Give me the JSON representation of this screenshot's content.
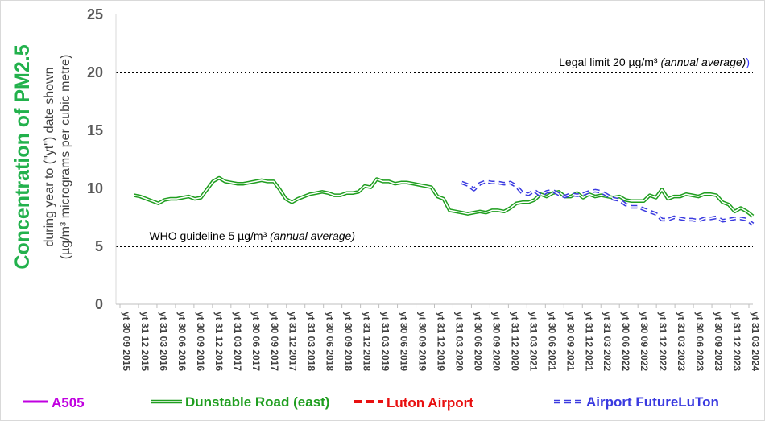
{
  "chart_data": {
    "type": "line",
    "title": "Concentration of PM2.5",
    "ylabel_line1": "during year to (\"yt\") date shown",
    "ylabel_line2": "(µg/m³ micrograms per cubic metre)",
    "ylim": [
      0,
      25
    ],
    "yticks": [
      "0",
      "5",
      "10",
      "15",
      "20",
      "25"
    ],
    "grid": false,
    "legend_position": "bottom",
    "categories": [
      "yt 30 09 2015",
      "yt 31 12 2015",
      "yt 31 03 2016",
      "yt 30 06 2016",
      "yt 30 09 2016",
      "yt 31 12 2016",
      "yt 31 03 2017",
      "yt 30 06 2017",
      "yt 30 09 2017",
      "yt 31 12 2017",
      "yt 31 03 2018",
      "yt 30 06 2018",
      "yt 30 09 2018",
      "yt 31 12 2018",
      "yt 31 03 2019",
      "yt 30 06 2019",
      "yt 30 09 2019",
      "yt 31 12 2019",
      "yt 31 03 2020",
      "yt 30 06 2020",
      "yt 30 09 2020",
      "yt 31 12 2020",
      "yt 31 03 2021",
      "yt 30 06 2021",
      "yt 30 09 2021",
      "yt 31 12 2021",
      "yt 31 03 2022",
      "yt 30 06 2022",
      "yt 30 09 2022",
      "yt 31 12 2022",
      "yt 31 03 2023",
      "yt 30 06 2023",
      "yt 30 09 2023",
      "yt 31 12 2023",
      "yt 31 03 2024"
    ],
    "x_end": "2024-06",
    "reference_lines": [
      {
        "value": 20,
        "label_main": "Legal limit 20 µg/m³",
        "label_note": "(annual average)",
        "label_close": ")",
        "color": "#000000",
        "close_color": "#3333ff"
      },
      {
        "value": 5,
        "label_main": "WHO guideline 5 µg/m³",
        "label_note": "(annual average)",
        "label_close": "",
        "color": "#000000",
        "close_color": "#000000"
      }
    ],
    "series": [
      {
        "name": "A505",
        "color": "#c000e0",
        "style": "solid",
        "points": []
      },
      {
        "name": "Dunstable Road (east)",
        "color": "#1f9e1f",
        "style": "double",
        "points": [
          [
            "2015-12",
            9.4
          ],
          [
            "2016-01",
            9.3
          ],
          [
            "2016-02",
            9.1
          ],
          [
            "2016-03",
            8.9
          ],
          [
            "2016-04",
            8.7
          ],
          [
            "2016-05",
            9.0
          ],
          [
            "2016-06",
            9.1
          ],
          [
            "2016-07",
            9.1
          ],
          [
            "2016-08",
            9.2
          ],
          [
            "2016-09",
            9.3
          ],
          [
            "2016-10",
            9.1
          ],
          [
            "2016-11",
            9.2
          ],
          [
            "2016-12",
            9.9
          ],
          [
            "2017-01",
            10.6
          ],
          [
            "2017-02",
            10.9
          ],
          [
            "2017-03",
            10.6
          ],
          [
            "2017-04",
            10.5
          ],
          [
            "2017-05",
            10.4
          ],
          [
            "2017-06",
            10.4
          ],
          [
            "2017-07",
            10.5
          ],
          [
            "2017-08",
            10.6
          ],
          [
            "2017-09",
            10.7
          ],
          [
            "2017-10",
            10.6
          ],
          [
            "2017-11",
            10.6
          ],
          [
            "2017-12",
            9.9
          ],
          [
            "2018-01",
            9.1
          ],
          [
            "2018-02",
            8.8
          ],
          [
            "2018-03",
            9.1
          ],
          [
            "2018-04",
            9.3
          ],
          [
            "2018-05",
            9.5
          ],
          [
            "2018-06",
            9.6
          ],
          [
            "2018-07",
            9.7
          ],
          [
            "2018-08",
            9.6
          ],
          [
            "2018-09",
            9.4
          ],
          [
            "2018-10",
            9.4
          ],
          [
            "2018-11",
            9.6
          ],
          [
            "2018-12",
            9.6
          ],
          [
            "2019-01",
            9.7
          ],
          [
            "2019-02",
            10.2
          ],
          [
            "2019-03",
            10.1
          ],
          [
            "2019-04",
            10.8
          ],
          [
            "2019-05",
            10.6
          ],
          [
            "2019-06",
            10.6
          ],
          [
            "2019-07",
            10.4
          ],
          [
            "2019-08",
            10.5
          ],
          [
            "2019-09",
            10.5
          ],
          [
            "2019-10",
            10.4
          ],
          [
            "2019-11",
            10.3
          ],
          [
            "2019-12",
            10.2
          ],
          [
            "2020-01",
            10.1
          ],
          [
            "2020-02",
            9.3
          ],
          [
            "2020-03",
            9.1
          ],
          [
            "2020-04",
            8.1
          ],
          [
            "2020-05",
            8.0
          ],
          [
            "2020-06",
            7.9
          ],
          [
            "2020-07",
            7.8
          ],
          [
            "2020-08",
            7.9
          ],
          [
            "2020-09",
            8.0
          ],
          [
            "2020-10",
            7.9
          ],
          [
            "2020-11",
            8.1
          ],
          [
            "2020-12",
            8.1
          ],
          [
            "2021-01",
            8.0
          ],
          [
            "2021-02",
            8.3
          ],
          [
            "2021-03",
            8.7
          ],
          [
            "2021-04",
            8.8
          ],
          [
            "2021-05",
            8.8
          ],
          [
            "2021-06",
            9.0
          ],
          [
            "2021-07",
            9.5
          ],
          [
            "2021-08",
            9.3
          ],
          [
            "2021-09",
            9.6
          ],
          [
            "2021-10",
            9.7
          ],
          [
            "2021-11",
            9.3
          ],
          [
            "2021-12",
            9.3
          ],
          [
            "2022-01",
            9.6
          ],
          [
            "2022-02",
            9.2
          ],
          [
            "2022-03",
            9.5
          ],
          [
            "2022-04",
            9.3
          ],
          [
            "2022-05",
            9.4
          ],
          [
            "2022-06",
            9.3
          ],
          [
            "2022-07",
            9.2
          ],
          [
            "2022-08",
            9.3
          ],
          [
            "2022-09",
            9.0
          ],
          [
            "2022-10",
            8.9
          ],
          [
            "2022-11",
            8.9
          ],
          [
            "2022-12",
            8.9
          ],
          [
            "2023-01",
            9.4
          ],
          [
            "2023-02",
            9.2
          ],
          [
            "2023-03",
            9.9
          ],
          [
            "2023-04",
            9.1
          ],
          [
            "2023-05",
            9.3
          ],
          [
            "2023-06",
            9.3
          ],
          [
            "2023-07",
            9.5
          ],
          [
            "2023-08",
            9.4
          ],
          [
            "2023-09",
            9.3
          ],
          [
            "2023-10",
            9.5
          ],
          [
            "2023-11",
            9.5
          ],
          [
            "2023-12",
            9.4
          ],
          [
            "2024-01",
            8.8
          ],
          [
            "2024-02",
            8.6
          ],
          [
            "2024-03",
            8.0
          ],
          [
            "2024-04",
            8.3
          ],
          [
            "2024-05",
            8.0
          ],
          [
            "2024-06",
            7.6
          ]
        ]
      },
      {
        "name": "Luton Airport",
        "color": "#e81010",
        "style": "dashed",
        "points": []
      },
      {
        "name": "Airport FutureLuTon",
        "color": "#3a3ae0",
        "style": "dashed-double",
        "points": [
          [
            "2020-06",
            10.5
          ],
          [
            "2020-07",
            10.3
          ],
          [
            "2020-08",
            9.9
          ],
          [
            "2020-09",
            10.4
          ],
          [
            "2020-10",
            10.6
          ],
          [
            "2020-11",
            10.5
          ],
          [
            "2020-12",
            10.5
          ],
          [
            "2021-01",
            10.4
          ],
          [
            "2021-02",
            10.5
          ],
          [
            "2021-03",
            10.2
          ],
          [
            "2021-04",
            9.6
          ],
          [
            "2021-05",
            9.5
          ],
          [
            "2021-06",
            9.8
          ],
          [
            "2021-07",
            9.4
          ],
          [
            "2021-08",
            9.7
          ],
          [
            "2021-09",
            9.8
          ],
          [
            "2021-10",
            9.5
          ],
          [
            "2021-11",
            9.3
          ],
          [
            "2021-12",
            9.5
          ],
          [
            "2022-01",
            9.4
          ],
          [
            "2022-02",
            9.5
          ],
          [
            "2022-03",
            9.7
          ],
          [
            "2022-04",
            9.8
          ],
          [
            "2022-05",
            9.7
          ],
          [
            "2022-06",
            9.4
          ],
          [
            "2022-07",
            9.1
          ],
          [
            "2022-08",
            9.0
          ],
          [
            "2022-09",
            8.6
          ],
          [
            "2022-10",
            8.4
          ],
          [
            "2022-11",
            8.4
          ],
          [
            "2022-12",
            8.2
          ],
          [
            "2023-01",
            8.0
          ],
          [
            "2023-02",
            7.8
          ],
          [
            "2023-03",
            7.3
          ],
          [
            "2023-04",
            7.3
          ],
          [
            "2023-05",
            7.5
          ],
          [
            "2023-06",
            7.4
          ],
          [
            "2023-07",
            7.3
          ],
          [
            "2023-08",
            7.3
          ],
          [
            "2023-09",
            7.2
          ],
          [
            "2023-10",
            7.4
          ],
          [
            "2023-11",
            7.4
          ],
          [
            "2023-12",
            7.5
          ],
          [
            "2024-01",
            7.2
          ],
          [
            "2024-02",
            7.3
          ],
          [
            "2024-03",
            7.4
          ],
          [
            "2024-04",
            7.4
          ],
          [
            "2024-05",
            7.3
          ],
          [
            "2024-06",
            6.9
          ]
        ]
      }
    ]
  }
}
